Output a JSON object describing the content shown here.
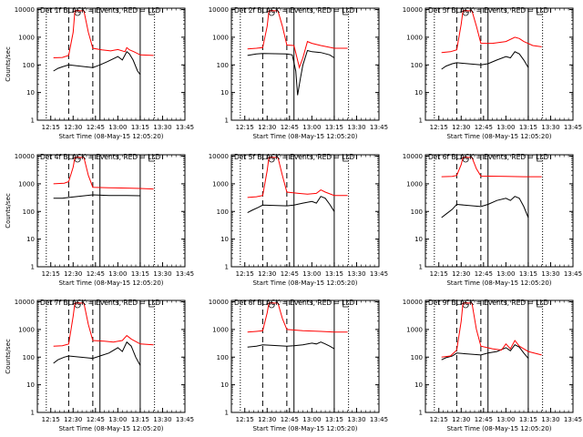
{
  "chart_data": {
    "type": "line",
    "panels": [
      {
        "title": "Det 1f BLACK = Events, RED = LLD",
        "ylabel": "Counts/sec",
        "xlabel": "Start Time (08-May-15 12:05:20)",
        "red": [
          [
            12.28,
            180
          ],
          [
            12.38,
            185
          ],
          [
            12.45,
            220
          ],
          [
            12.5,
            1500
          ],
          [
            12.52,
            9000
          ],
          [
            12.62,
            9000
          ],
          [
            12.67,
            1500
          ],
          [
            12.72,
            400
          ],
          [
            12.82,
            350
          ],
          [
            12.92,
            320
          ],
          [
            13.0,
            360
          ],
          [
            13.08,
            300
          ],
          [
            13.1,
            420
          ],
          [
            13.13,
            350
          ],
          [
            13.18,
            300
          ],
          [
            13.25,
            230
          ],
          [
            13.4,
            220
          ]
        ],
        "black": [
          [
            12.28,
            60
          ],
          [
            12.33,
            75
          ],
          [
            12.38,
            85
          ],
          [
            12.45,
            100
          ],
          [
            12.72,
            80
          ],
          [
            12.8,
            100
          ],
          [
            12.88,
            130
          ],
          [
            13.0,
            200
          ],
          [
            13.05,
            150
          ],
          [
            13.1,
            300
          ],
          [
            13.13,
            250
          ],
          [
            13.17,
            150
          ],
          [
            13.22,
            60
          ],
          [
            13.25,
            45
          ]
        ]
      },
      {
        "title": "Det 2f BLACK = Events, RED = LLD",
        "ylabel": "",
        "xlabel": "Start Time (08-May-15 12:05:20)",
        "red": [
          [
            12.28,
            380
          ],
          [
            12.38,
            400
          ],
          [
            12.45,
            420
          ],
          [
            12.5,
            2500
          ],
          [
            12.52,
            9000
          ],
          [
            12.62,
            9000
          ],
          [
            12.67,
            2500
          ],
          [
            12.72,
            520
          ],
          [
            12.8,
            500
          ],
          [
            12.83,
            200
          ],
          [
            12.86,
            80
          ],
          [
            12.9,
            180
          ],
          [
            12.95,
            700
          ],
          [
            13.0,
            600
          ],
          [
            13.1,
            500
          ],
          [
            13.25,
            400
          ],
          [
            13.4,
            400
          ]
        ],
        "black": [
          [
            12.28,
            220
          ],
          [
            12.38,
            250
          ],
          [
            12.45,
            260
          ],
          [
            12.72,
            250
          ],
          [
            12.78,
            230
          ],
          [
            12.82,
            60
          ],
          [
            12.84,
            8
          ],
          [
            12.87,
            30
          ],
          [
            12.9,
            100
          ],
          [
            12.95,
            330
          ],
          [
            13.0,
            300
          ],
          [
            13.1,
            280
          ],
          [
            13.2,
            230
          ],
          [
            13.25,
            180
          ]
        ]
      },
      {
        "title": "Det 3f BLACK = Events, RED = LLD",
        "ylabel": "",
        "xlabel": "Start Time (08-May-15 12:05:20)",
        "red": [
          [
            12.28,
            280
          ],
          [
            12.38,
            300
          ],
          [
            12.45,
            350
          ],
          [
            12.5,
            3000
          ],
          [
            12.52,
            9000
          ],
          [
            12.62,
            9000
          ],
          [
            12.67,
            2500
          ],
          [
            12.72,
            600
          ],
          [
            12.85,
            600
          ],
          [
            13.0,
            700
          ],
          [
            13.1,
            1000
          ],
          [
            13.15,
            900
          ],
          [
            13.2,
            700
          ],
          [
            13.3,
            500
          ],
          [
            13.4,
            450
          ]
        ],
        "black": [
          [
            12.28,
            70
          ],
          [
            12.33,
            90
          ],
          [
            12.4,
            110
          ],
          [
            12.45,
            120
          ],
          [
            12.72,
            100
          ],
          [
            12.8,
            110
          ],
          [
            12.9,
            150
          ],
          [
            13.0,
            200
          ],
          [
            13.05,
            180
          ],
          [
            13.1,
            300
          ],
          [
            13.15,
            250
          ],
          [
            13.2,
            150
          ],
          [
            13.25,
            80
          ]
        ]
      },
      {
        "title": "Det 4f BLACK = Events, RED = LLD",
        "ylabel": "Counts/sec",
        "xlabel": "Start Time (08-May-15 12:05:20)",
        "red": [
          [
            12.28,
            1000
          ],
          [
            12.4,
            1050
          ],
          [
            12.45,
            1200
          ],
          [
            12.5,
            4000
          ],
          [
            12.52,
            9000
          ],
          [
            12.62,
            9000
          ],
          [
            12.67,
            2000
          ],
          [
            12.72,
            750
          ],
          [
            12.9,
            720
          ],
          [
            13.1,
            700
          ],
          [
            13.25,
            680
          ],
          [
            13.4,
            650
          ]
        ],
        "black": [
          [
            12.28,
            300
          ],
          [
            12.38,
            300
          ],
          [
            12.45,
            320
          ],
          [
            12.72,
            400
          ],
          [
            12.9,
            380
          ],
          [
            13.1,
            380
          ],
          [
            13.25,
            370
          ]
        ]
      },
      {
        "title": "Det 5f BLACK = Events, RED = LLD",
        "ylabel": "",
        "xlabel": "Start Time (08-May-15 12:05:20)",
        "red": [
          [
            12.28,
            320
          ],
          [
            12.38,
            340
          ],
          [
            12.45,
            380
          ],
          [
            12.5,
            3000
          ],
          [
            12.52,
            9000
          ],
          [
            12.62,
            9000
          ],
          [
            12.67,
            2000
          ],
          [
            12.72,
            500
          ],
          [
            12.85,
            450
          ],
          [
            12.95,
            420
          ],
          [
            13.05,
            450
          ],
          [
            13.1,
            600
          ],
          [
            13.15,
            500
          ],
          [
            13.25,
            380
          ],
          [
            13.4,
            380
          ]
        ],
        "black": [
          [
            12.28,
            90
          ],
          [
            12.33,
            110
          ],
          [
            12.4,
            140
          ],
          [
            12.45,
            170
          ],
          [
            12.72,
            160
          ],
          [
            12.8,
            170
          ],
          [
            12.9,
            200
          ],
          [
            13.0,
            230
          ],
          [
            13.05,
            200
          ],
          [
            13.1,
            350
          ],
          [
            13.15,
            300
          ],
          [
            13.2,
            180
          ],
          [
            13.25,
            100
          ]
        ]
      },
      {
        "title": "Det 6f BLACK = Events, RED = LLD",
        "ylabel": "",
        "xlabel": "Start Time (08-May-15 12:05:20)",
        "red": [
          [
            12.28,
            1800
          ],
          [
            12.4,
            1850
          ],
          [
            12.45,
            2000
          ],
          [
            12.5,
            5000
          ],
          [
            12.52,
            9000
          ],
          [
            12.62,
            9000
          ],
          [
            12.67,
            3500
          ],
          [
            12.72,
            1900
          ],
          [
            13.0,
            1850
          ],
          [
            13.2,
            1800
          ],
          [
            13.4,
            1800
          ]
        ],
        "black": [
          [
            12.28,
            60
          ],
          [
            12.33,
            80
          ],
          [
            12.4,
            120
          ],
          [
            12.45,
            180
          ],
          [
            12.72,
            150
          ],
          [
            12.8,
            180
          ],
          [
            12.9,
            250
          ],
          [
            13.0,
            300
          ],
          [
            13.05,
            250
          ],
          [
            13.1,
            350
          ],
          [
            13.15,
            300
          ],
          [
            13.2,
            150
          ],
          [
            13.25,
            60
          ]
        ]
      },
      {
        "title": "Det 7f BLACK = Events, RED = LLD",
        "ylabel": "Counts/sec",
        "xlabel": "Start Time (08-May-15 12:05:20)",
        "red": [
          [
            12.28,
            250
          ],
          [
            12.38,
            260
          ],
          [
            12.45,
            300
          ],
          [
            12.5,
            3000
          ],
          [
            12.52,
            9000
          ],
          [
            12.62,
            9000
          ],
          [
            12.67,
            1500
          ],
          [
            12.72,
            400
          ],
          [
            12.85,
            380
          ],
          [
            12.95,
            350
          ],
          [
            13.05,
            400
          ],
          [
            13.1,
            600
          ],
          [
            13.15,
            450
          ],
          [
            13.25,
            300
          ],
          [
            13.4,
            280
          ]
        ],
        "black": [
          [
            12.28,
            60
          ],
          [
            12.33,
            80
          ],
          [
            12.4,
            100
          ],
          [
            12.45,
            110
          ],
          [
            12.72,
            90
          ],
          [
            12.8,
            110
          ],
          [
            12.9,
            140
          ],
          [
            13.0,
            220
          ],
          [
            13.05,
            160
          ],
          [
            13.1,
            350
          ],
          [
            13.15,
            250
          ],
          [
            13.2,
            100
          ],
          [
            13.25,
            50
          ]
        ]
      },
      {
        "title": "Det 8f BLACK = Events, RED = LLD",
        "ylabel": "",
        "xlabel": "Start Time (08-May-15 12:05:20)",
        "red": [
          [
            12.28,
            800
          ],
          [
            12.38,
            850
          ],
          [
            12.45,
            900
          ],
          [
            12.5,
            4000
          ],
          [
            12.52,
            9000
          ],
          [
            12.62,
            9000
          ],
          [
            12.67,
            2500
          ],
          [
            12.72,
            1000
          ],
          [
            12.9,
            900
          ],
          [
            13.1,
            850
          ],
          [
            13.25,
            800
          ],
          [
            13.4,
            800
          ]
        ],
        "black": [
          [
            12.28,
            230
          ],
          [
            12.38,
            250
          ],
          [
            12.45,
            280
          ],
          [
            12.72,
            250
          ],
          [
            12.8,
            260
          ],
          [
            12.9,
            280
          ],
          [
            13.0,
            320
          ],
          [
            13.05,
            300
          ],
          [
            13.1,
            350
          ],
          [
            13.15,
            300
          ],
          [
            13.2,
            250
          ],
          [
            13.25,
            200
          ]
        ]
      },
      {
        "title": "Det 9f BLACK = Events, RED = LLD",
        "ylabel": "",
        "xlabel": "Start Time (08-May-15 12:05:20)",
        "red": [
          [
            12.28,
            100
          ],
          [
            12.38,
            110
          ],
          [
            12.45,
            180
          ],
          [
            12.5,
            2000
          ],
          [
            12.52,
            9000
          ],
          [
            12.62,
            9000
          ],
          [
            12.67,
            1000
          ],
          [
            12.72,
            250
          ],
          [
            12.85,
            200
          ],
          [
            12.95,
            180
          ],
          [
            13.0,
            300
          ],
          [
            13.05,
            200
          ],
          [
            13.1,
            400
          ],
          [
            13.15,
            250
          ],
          [
            13.25,
            160
          ],
          [
            13.4,
            120
          ]
        ],
        "black": [
          [
            12.28,
            80
          ],
          [
            12.33,
            95
          ],
          [
            12.4,
            110
          ],
          [
            12.45,
            140
          ],
          [
            12.72,
            120
          ],
          [
            12.8,
            140
          ],
          [
            12.9,
            160
          ],
          [
            13.0,
            220
          ],
          [
            13.05,
            170
          ],
          [
            13.1,
            280
          ],
          [
            13.15,
            230
          ],
          [
            13.2,
            140
          ],
          [
            13.25,
            90
          ]
        ]
      }
    ],
    "x_ticks": [
      "12:15",
      "12:30",
      "12:45",
      "13:00",
      "13:15",
      "13:30",
      "13:45"
    ],
    "y_ticks": [
      "1",
      "10",
      "100",
      "1000",
      "10000"
    ],
    "xlim": [
      12.1,
      13.75
    ],
    "ylim": [
      1,
      10000
    ],
    "y_scale": "log",
    "dotted_lines": [
      12.2,
      13.41
    ],
    "dashed_lines": [
      12.45,
      12.72
    ],
    "solid_lines": [
      12.8,
      13.25
    ],
    "colors": {
      "red": "#ff0000",
      "black": "#000000"
    }
  }
}
